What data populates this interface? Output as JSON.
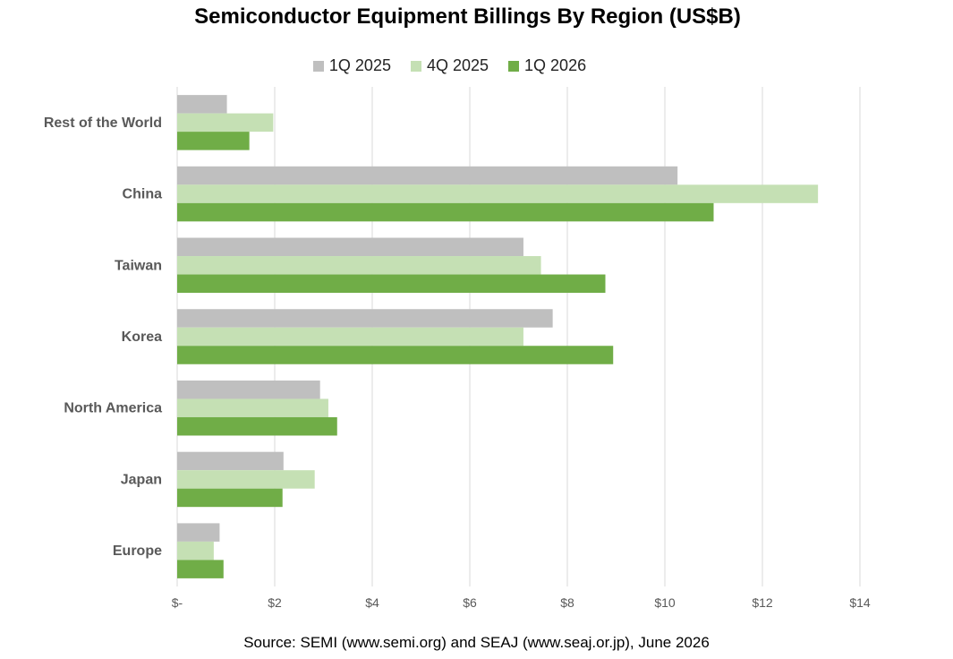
{
  "chart_data": {
    "type": "bar",
    "orientation": "horizontal",
    "title": "Semiconductor Equipment Billings By Region (US$B)",
    "source": "Source: SEMI (www.semi.org)  and SEAJ (www.seaj.or.jp),  June 2026",
    "categories": [
      "Rest of the World",
      "China",
      "Taiwan",
      "Korea",
      "North America",
      "Japan",
      "Europe"
    ],
    "series": [
      {
        "name": "1Q 2025",
        "color": "#bfbfbf",
        "values": [
          1.02,
          10.26,
          7.1,
          7.7,
          2.93,
          2.18,
          0.87
        ]
      },
      {
        "name": "4Q 2025",
        "color": "#c5e0b4",
        "values": [
          1.97,
          13.14,
          7.46,
          7.1,
          3.1,
          2.82,
          0.75
        ]
      },
      {
        "name": "1Q 2026",
        "color": "#70ad47",
        "values": [
          1.48,
          11.0,
          8.78,
          8.94,
          3.28,
          2.16,
          0.95
        ]
      }
    ],
    "xlim": [
      0,
      14
    ],
    "xticks": [
      "$-",
      "$2",
      "$4",
      "$6",
      "$8",
      "$10",
      "$12",
      "$14"
    ],
    "grid": "vertical",
    "legend_position": "top"
  }
}
